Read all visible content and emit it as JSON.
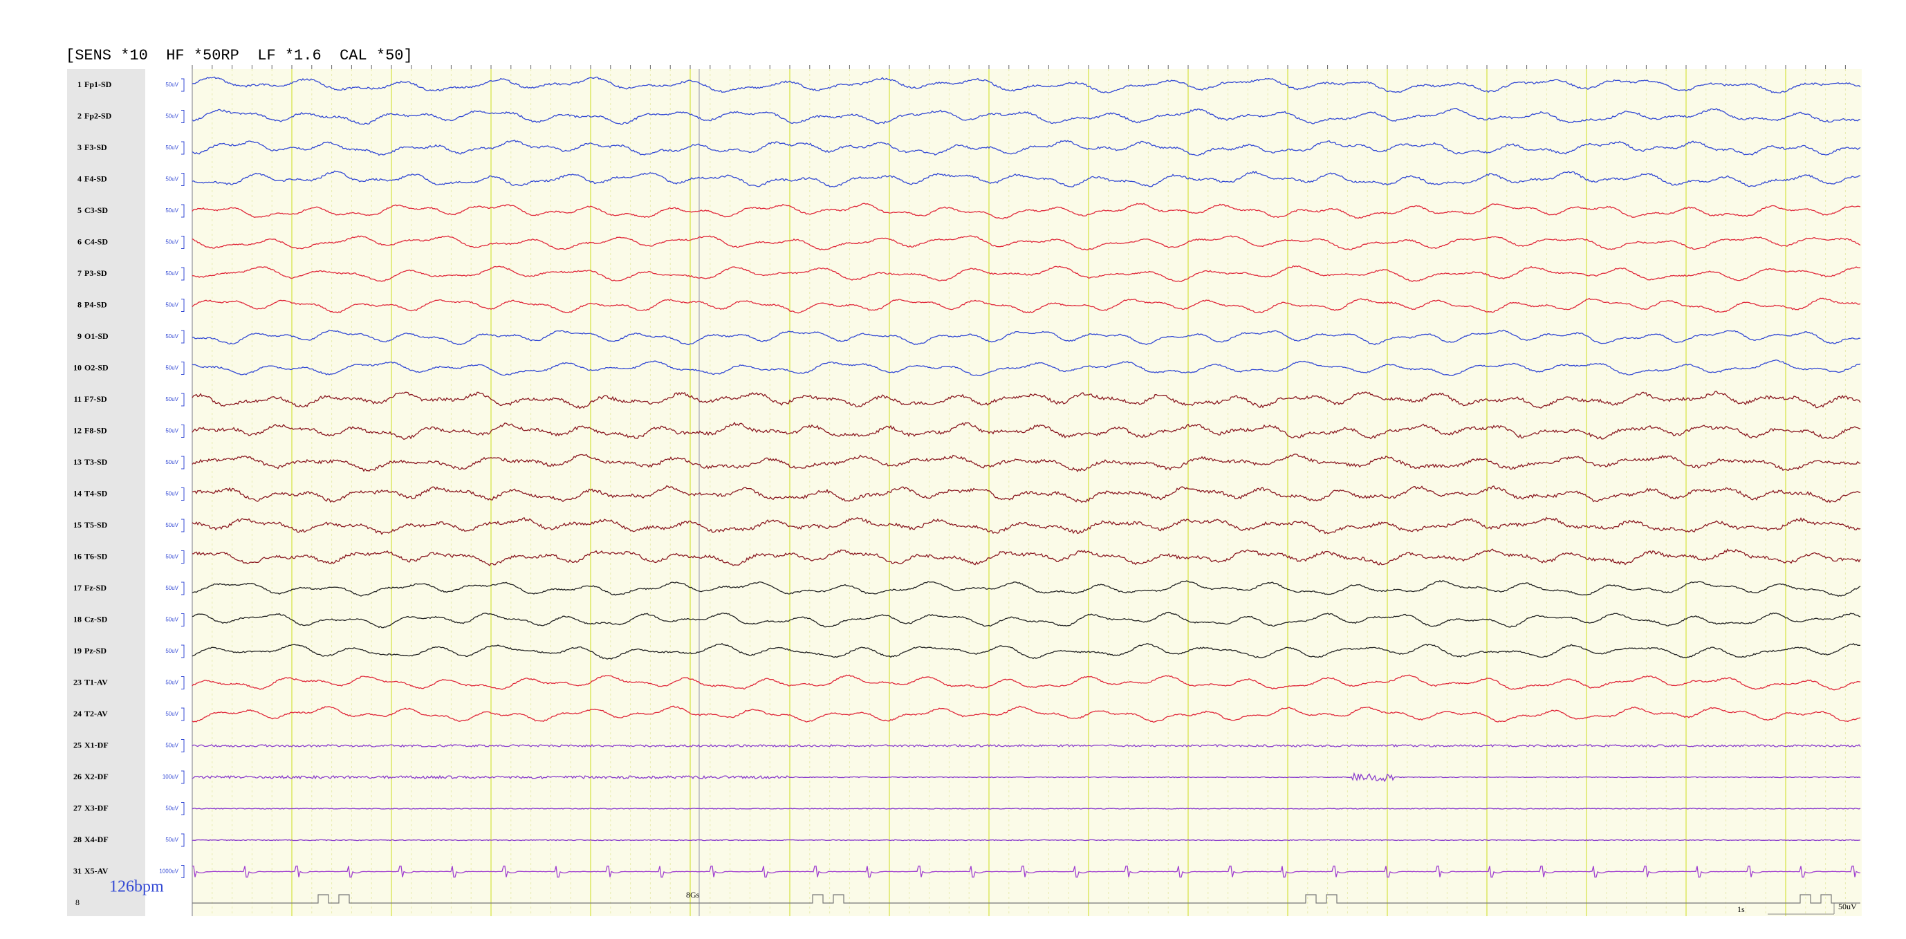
{
  "header": "[SENS *10  HF *50RP  LF *1.6  CAL *50]",
  "channels": [
    {
      "number": "1",
      "label": "Fp1-SD",
      "scale": "50uV",
      "color": "#3349d4"
    },
    {
      "number": "2",
      "label": "Fp2-SD",
      "scale": "50uV",
      "color": "#3349d4"
    },
    {
      "number": "3",
      "label": "F3-SD",
      "scale": "50uV",
      "color": "#3349d4"
    },
    {
      "number": "4",
      "label": "F4-SD",
      "scale": "50uV",
      "color": "#3349d4"
    },
    {
      "number": "5",
      "label": "C3-SD",
      "scale": "50uV",
      "color": "#e0283a"
    },
    {
      "number": "6",
      "label": "C4-SD",
      "scale": "50uV",
      "color": "#e0283a"
    },
    {
      "number": "7",
      "label": "P3-SD",
      "scale": "50uV",
      "color": "#e0283a"
    },
    {
      "number": "8",
      "label": "P4-SD",
      "scale": "50uV",
      "color": "#e0283a"
    },
    {
      "number": "9",
      "label": "O1-SD",
      "scale": "50uV",
      "color": "#3349d4"
    },
    {
      "number": "10",
      "label": "O2-SD",
      "scale": "50uV",
      "color": "#3349d4"
    },
    {
      "number": "11",
      "label": "F7-SD",
      "scale": "50uV",
      "color": "#8b1a22"
    },
    {
      "number": "12",
      "label": "F8-SD",
      "scale": "50uV",
      "color": "#8b1a22"
    },
    {
      "number": "13",
      "label": "T3-SD",
      "scale": "50uV",
      "color": "#8b1a22"
    },
    {
      "number": "14",
      "label": "T4-SD",
      "scale": "50uV",
      "color": "#8b1a22"
    },
    {
      "number": "15",
      "label": "T5-SD",
      "scale": "50uV",
      "color": "#8b1a22"
    },
    {
      "number": "16",
      "label": "T6-SD",
      "scale": "50uV",
      "color": "#8b1a22"
    },
    {
      "number": "17",
      "label": "Fz-SD",
      "scale": "50uV",
      "color": "#222222"
    },
    {
      "number": "18",
      "label": "Cz-SD",
      "scale": "50uV",
      "color": "#222222"
    },
    {
      "number": "19",
      "label": "Pz-SD",
      "scale": "50uV",
      "color": "#222222"
    },
    {
      "number": "23",
      "label": "T1-AV",
      "scale": "50uV",
      "color": "#e0283a"
    },
    {
      "number": "24",
      "label": "T2-AV",
      "scale": "50uV",
      "color": "#e0283a"
    },
    {
      "number": "25",
      "label": "X1-DF",
      "scale": "50uV",
      "color": "#8a3ccc"
    },
    {
      "number": "26",
      "label": "X2-DF",
      "scale": "100uV",
      "color": "#8a3ccc"
    },
    {
      "number": "27",
      "label": "X3-DF",
      "scale": "50uV",
      "color": "#8a3ccc"
    },
    {
      "number": "28",
      "label": "X4-DF",
      "scale": "50uV",
      "color": "#8a3ccc"
    },
    {
      "number": "31",
      "label": "X5-AV",
      "scale": "1000uV",
      "color": "#a040d0"
    }
  ],
  "footer": {
    "row_number": "8",
    "rate": "126bpm",
    "marker": "8Gs",
    "time_scale": "1s",
    "amp_scale": "50uV"
  }
}
